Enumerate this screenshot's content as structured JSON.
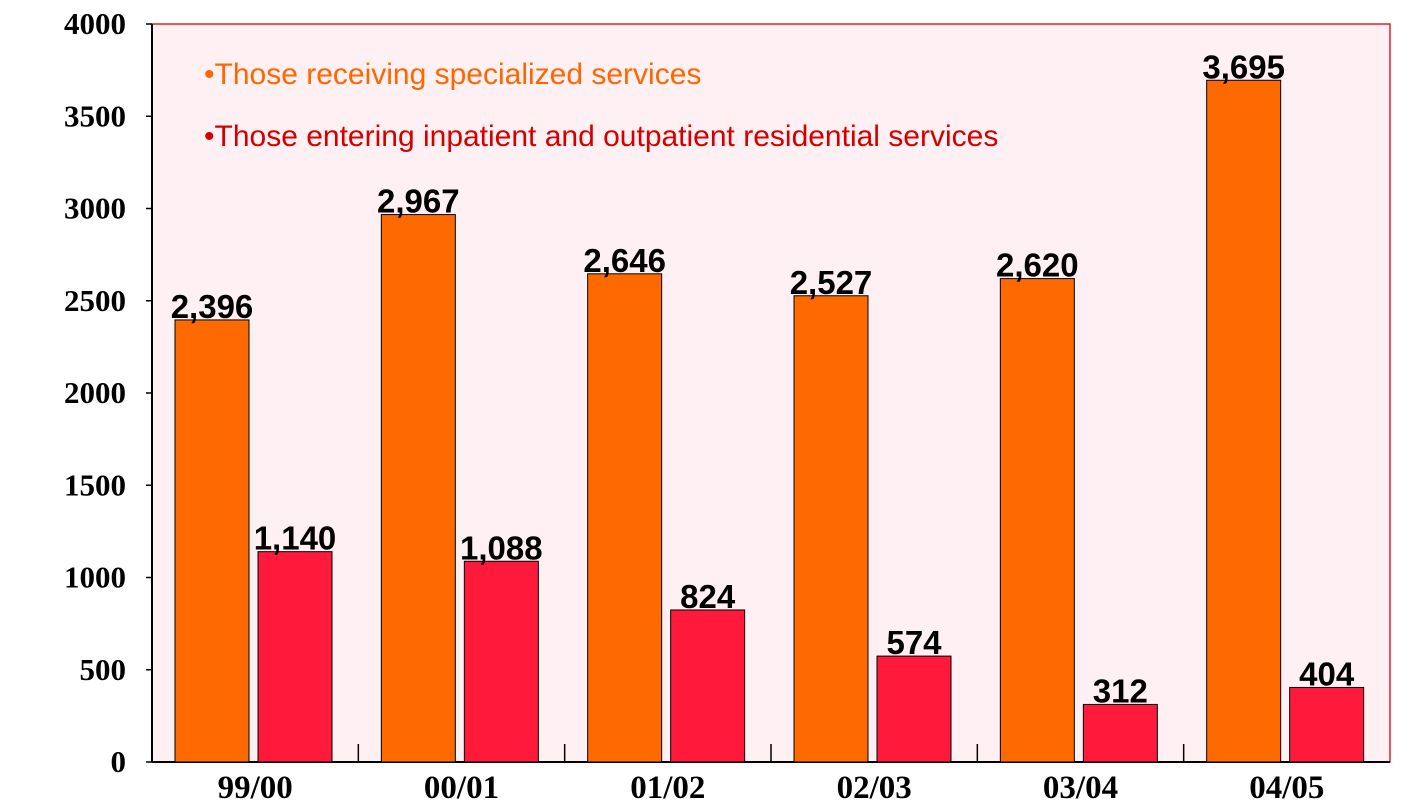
{
  "chart_data": {
    "type": "bar",
    "categories": [
      "99/00",
      "00/01",
      "01/02",
      "02/03",
      "03/04",
      "04/05"
    ],
    "series": [
      {
        "name": "•Those receiving specialized services",
        "color": "#ff6a00",
        "values": [
          2396,
          2967,
          2646,
          2527,
          2620,
          3695
        ],
        "value_labels": [
          "2,396",
          "2,967",
          "2,646",
          "2,527",
          "2,620",
          "3,695"
        ]
      },
      {
        "name": "•Those entering inpatient and outpatient residential services",
        "color": "#ff1a3c",
        "values": [
          1140,
          1088,
          824,
          574,
          312,
          404
        ],
        "value_labels": [
          "1,140",
          "1,088",
          "824",
          "574",
          "312",
          "404"
        ]
      }
    ],
    "ylim": [
      0,
      4000
    ],
    "yticks": [
      0,
      500,
      1000,
      1500,
      2000,
      2500,
      3000,
      3500,
      4000
    ]
  }
}
